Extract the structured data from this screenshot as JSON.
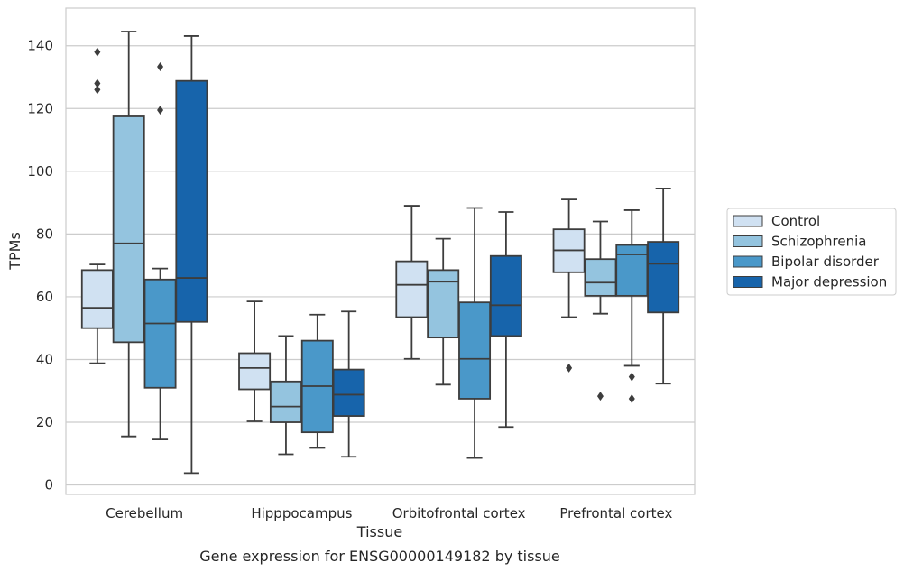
{
  "chart_data": {
    "type": "boxplot",
    "title": "",
    "caption": "Gene expression for ENSG00000149182 by tissue",
    "xlabel": "Tissue",
    "ylabel": "TPMs",
    "ylim": [
      -3,
      152
    ],
    "yticks": [
      0,
      20,
      40,
      60,
      80,
      100,
      120,
      140
    ],
    "grid": "horizontal",
    "legend_position": "right",
    "categories": [
      "Cerebellum",
      "Hipppocampus",
      "Orbitofrontal cortex",
      "Prefrontal cortex"
    ],
    "series": [
      {
        "name": "Control",
        "color": "#d0e1f2",
        "boxes": [
          {
            "whislo": 38.8,
            "q1": 50,
            "med": 56.5,
            "q3": 68.5,
            "whishi": 70.3,
            "fliers": [
              126,
              128,
              138
            ]
          },
          {
            "whislo": 20.3,
            "q1": 30.5,
            "med": 37.3,
            "q3": 42,
            "whishi": 58.5,
            "fliers": []
          },
          {
            "whislo": 40.2,
            "q1": 53.5,
            "med": 63.8,
            "q3": 71.3,
            "whishi": 89,
            "fliers": []
          },
          {
            "whislo": 53.5,
            "q1": 67.8,
            "med": 74.8,
            "q3": 81.5,
            "whishi": 91,
            "fliers": [
              37.3
            ]
          }
        ]
      },
      {
        "name": "Schizophrenia",
        "color": "#94c4df",
        "boxes": [
          {
            "whislo": 15.5,
            "q1": 45.5,
            "med": 77,
            "q3": 117.5,
            "whishi": 144.5,
            "fliers": []
          },
          {
            "whislo": 9.8,
            "q1": 20,
            "med": 25,
            "q3": 33,
            "whishi": 47.5,
            "fliers": []
          },
          {
            "whislo": 32,
            "q1": 47,
            "med": 64.8,
            "q3": 68.5,
            "whishi": 78.5,
            "fliers": []
          },
          {
            "whislo": 54.6,
            "q1": 60.3,
            "med": 64.5,
            "q3": 72,
            "whishi": 84,
            "fliers": [
              28.3
            ]
          }
        ]
      },
      {
        "name": "Bipolar disorder",
        "color": "#4a98c9",
        "boxes": [
          {
            "whislo": 14.5,
            "q1": 31,
            "med": 51.5,
            "q3": 65.5,
            "whishi": 69,
            "fliers": [
              119.5,
              133.3
            ]
          },
          {
            "whislo": 11.8,
            "q1": 16.8,
            "med": 31.5,
            "q3": 46,
            "whishi": 54.3,
            "fliers": []
          },
          {
            "whislo": 8.6,
            "q1": 27.5,
            "med": 40.2,
            "q3": 58.2,
            "whishi": 88.3,
            "fliers": []
          },
          {
            "whislo": 38,
            "q1": 60.3,
            "med": 73.5,
            "q3": 76.5,
            "whishi": 87.6,
            "fliers": [
              34.5,
              27.5
            ]
          }
        ]
      },
      {
        "name": "Major depression",
        "color": "#1764ab",
        "boxes": [
          {
            "whislo": 3.8,
            "q1": 52,
            "med": 66,
            "q3": 128.8,
            "whishi": 143.1,
            "fliers": []
          },
          {
            "whislo": 9,
            "q1": 22,
            "med": 28.8,
            "q3": 36.8,
            "whishi": 55.3,
            "fliers": []
          },
          {
            "whislo": 18.5,
            "q1": 47.5,
            "med": 57.3,
            "q3": 73,
            "whishi": 87,
            "fliers": []
          },
          {
            "whislo": 32.3,
            "q1": 55,
            "med": 70.5,
            "q3": 77.5,
            "whishi": 94.5,
            "fliers": []
          }
        ]
      }
    ]
  }
}
